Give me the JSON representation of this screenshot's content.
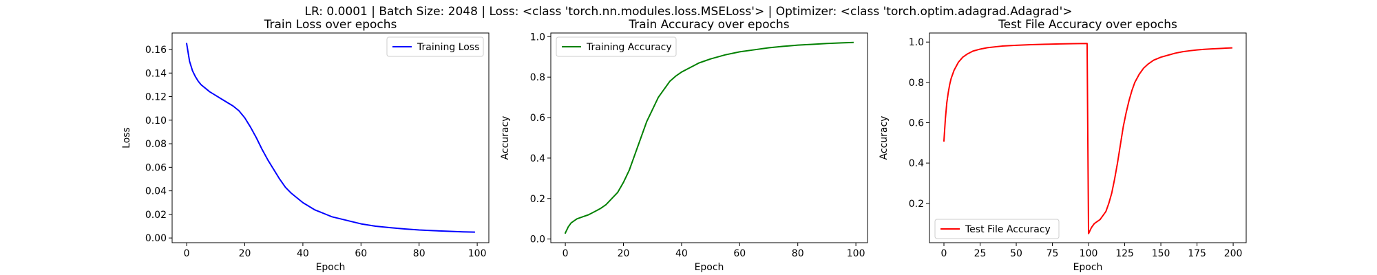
{
  "figure": {
    "suptitle": "LR: 0.0001 | Batch Size: 2048 | Loss: <class 'torch.nn.modules.loss.MSELoss'> | Optimizer: <class 'torch.optim.adagrad.Adagrad'>"
  },
  "chart_data": [
    {
      "type": "line",
      "title": "Train Loss over epochs",
      "xlabel": "Epoch",
      "ylabel": "Loss",
      "xlim": [
        -5,
        104
      ],
      "ylim": [
        -0.004,
        0.174
      ],
      "xticks": [
        0,
        20,
        40,
        60,
        80,
        100
      ],
      "xtick_labels": [
        "0",
        "20",
        "40",
        "60",
        "80",
        "100"
      ],
      "yticks": [
        0.0,
        0.02,
        0.04,
        0.06,
        0.08,
        0.1,
        0.12,
        0.14,
        0.16
      ],
      "ytick_labels": [
        "0.00",
        "0.02",
        "0.04",
        "0.06",
        "0.08",
        "0.10",
        "0.12",
        "0.14",
        "0.16"
      ],
      "grid": false,
      "legend": "top-right",
      "series": [
        {
          "name": "Training Loss",
          "color": "#0000ff",
          "x": [
            0,
            1,
            2,
            3,
            4,
            5,
            6,
            8,
            10,
            12,
            14,
            16,
            18,
            20,
            22,
            24,
            26,
            28,
            30,
            32,
            34,
            36,
            38,
            40,
            42,
            44,
            46,
            48,
            50,
            55,
            60,
            65,
            70,
            75,
            80,
            85,
            90,
            95,
            99
          ],
          "y": [
            0.165,
            0.15,
            0.142,
            0.137,
            0.133,
            0.13,
            0.128,
            0.124,
            0.121,
            0.118,
            0.115,
            0.112,
            0.108,
            0.102,
            0.094,
            0.085,
            0.075,
            0.066,
            0.058,
            0.05,
            0.043,
            0.038,
            0.034,
            0.03,
            0.027,
            0.024,
            0.022,
            0.02,
            0.018,
            0.015,
            0.012,
            0.01,
            0.0088,
            0.0077,
            0.0068,
            0.0062,
            0.0057,
            0.0052,
            0.005
          ]
        }
      ]
    },
    {
      "type": "line",
      "title": "Train Accuracy over epochs",
      "xlabel": "Epoch",
      "ylabel": "Accuracy",
      "xlim": [
        -5,
        104
      ],
      "ylim": [
        -0.018,
        1.018
      ],
      "xticks": [
        0,
        20,
        40,
        60,
        80,
        100
      ],
      "xtick_labels": [
        "0",
        "20",
        "40",
        "60",
        "80",
        "100"
      ],
      "yticks": [
        0.0,
        0.2,
        0.4,
        0.6,
        0.8,
        1.0
      ],
      "ytick_labels": [
        "0.0",
        "0.2",
        "0.4",
        "0.6",
        "0.8",
        "1.0"
      ],
      "grid": false,
      "legend": "top-left",
      "series": [
        {
          "name": "Training Accuracy",
          "color": "#008000",
          "x": [
            0,
            1,
            2,
            4,
            6,
            8,
            10,
            12,
            14,
            16,
            18,
            20,
            22,
            24,
            26,
            28,
            30,
            32,
            34,
            36,
            38,
            40,
            42,
            44,
            46,
            48,
            50,
            55,
            60,
            65,
            70,
            75,
            80,
            85,
            90,
            95,
            99
          ],
          "y": [
            0.03,
            0.06,
            0.08,
            0.1,
            0.11,
            0.12,
            0.135,
            0.15,
            0.17,
            0.2,
            0.23,
            0.28,
            0.34,
            0.42,
            0.5,
            0.58,
            0.64,
            0.7,
            0.74,
            0.78,
            0.805,
            0.825,
            0.84,
            0.855,
            0.87,
            0.88,
            0.89,
            0.91,
            0.925,
            0.935,
            0.945,
            0.952,
            0.958,
            0.962,
            0.966,
            0.969,
            0.971
          ]
        }
      ]
    },
    {
      "type": "line",
      "title": "Test File Accuracy over epochs",
      "xlabel": "Epoch",
      "ylabel": "Accuracy",
      "xlim": [
        -10,
        209
      ],
      "ylim": [
        0.005,
        1.045
      ],
      "xticks": [
        0,
        25,
        50,
        75,
        100,
        125,
        150,
        175,
        200
      ],
      "xtick_labels": [
        "0",
        "25",
        "50",
        "75",
        "100",
        "125",
        "150",
        "175",
        "200"
      ],
      "yticks": [
        0.2,
        0.4,
        0.6,
        0.8,
        1.0
      ],
      "ytick_labels": [
        "0.2",
        "0.4",
        "0.6",
        "0.8",
        "1.0"
      ],
      "grid": false,
      "legend": "bottom-left",
      "series": [
        {
          "name": "Test File Accuracy",
          "color": "#ff0000",
          "x": [
            0,
            1,
            2,
            3,
            4,
            5,
            7,
            10,
            13,
            16,
            20,
            25,
            30,
            40,
            50,
            60,
            70,
            80,
            90,
            99,
            100,
            102,
            104,
            106,
            108,
            110,
            112,
            114,
            116,
            118,
            120,
            122,
            124,
            126,
            128,
            130,
            132,
            135,
            138,
            141,
            145,
            150,
            155,
            160,
            165,
            170,
            175,
            180,
            185,
            190,
            195,
            199
          ],
          "y": [
            0.51,
            0.62,
            0.7,
            0.75,
            0.79,
            0.82,
            0.86,
            0.9,
            0.925,
            0.94,
            0.955,
            0.965,
            0.972,
            0.98,
            0.984,
            0.987,
            0.989,
            0.991,
            0.992,
            0.993,
            0.05,
            0.08,
            0.1,
            0.11,
            0.12,
            0.14,
            0.16,
            0.2,
            0.25,
            0.32,
            0.4,
            0.49,
            0.58,
            0.65,
            0.71,
            0.76,
            0.8,
            0.84,
            0.87,
            0.89,
            0.91,
            0.925,
            0.935,
            0.945,
            0.952,
            0.957,
            0.961,
            0.964,
            0.966,
            0.968,
            0.97,
            0.971
          ]
        }
      ]
    }
  ]
}
